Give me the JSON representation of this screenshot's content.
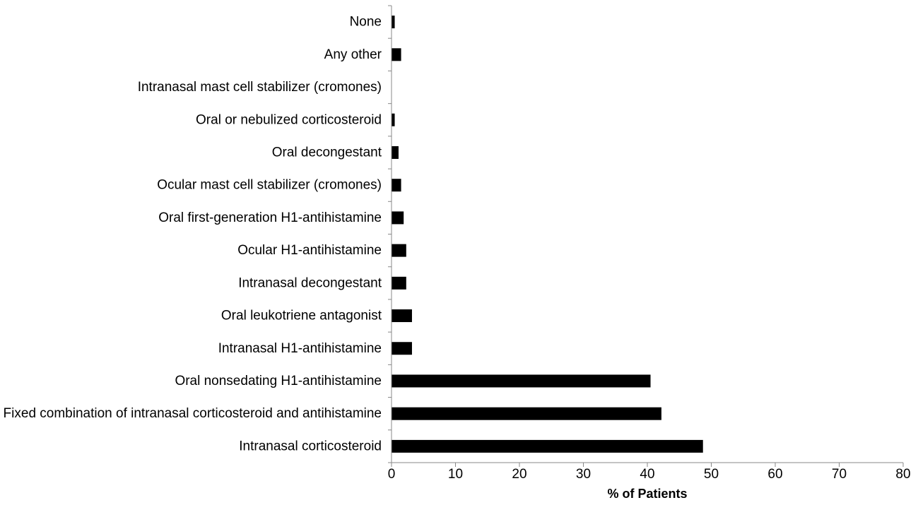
{
  "chart_data": {
    "type": "bar",
    "orientation": "horizontal",
    "title": "",
    "xlabel": "% of Patients",
    "ylabel": "",
    "xlim": [
      0,
      80
    ],
    "x_ticks": [
      0,
      10,
      20,
      30,
      40,
      50,
      60,
      70,
      80
    ],
    "grid": false,
    "legend": "none",
    "bar_color": "#000000",
    "categories": [
      "None",
      "Any other",
      "Intranasal mast cell stabilizer (cromones)",
      "Oral or nebulized corticosteroid",
      "Oral decongestant",
      "Ocular mast cell stabilizer (cromones)",
      "Oral first-generation H1-antihistamine",
      "Ocular H1-antihistamine",
      "Intranasal decongestant",
      "Oral leukotriene antagonist",
      "Intranasal H1-antihistamine",
      "Oral nonsedating H1-antihistamine",
      "Fixed combination of intranasal corticosteroid and antihistamine",
      "Intranasal corticosteroid"
    ],
    "values": [
      0.5,
      1.5,
      0,
      0.5,
      1.1,
      1.5,
      1.9,
      2.3,
      2.3,
      3.2,
      3.2,
      40.5,
      42.2,
      48.7
    ]
  }
}
